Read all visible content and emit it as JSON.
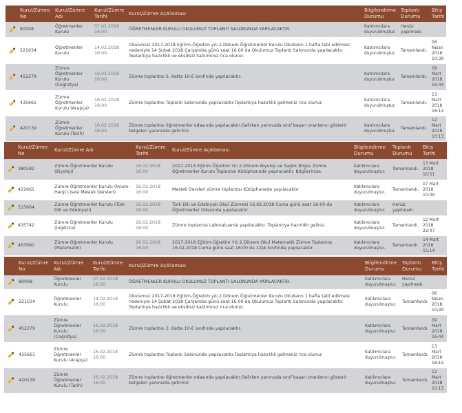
{
  "tables": [
    {
      "headers": [
        "",
        "Kurul/Zümre No",
        "Kurul/Zümre Adı",
        "Kurul/Zümre Tarihi",
        "Kurul/Zümre Açıklaması",
        "Bilgilendirme Durumu",
        "Toplantı Durumu",
        "Bitiş Tarihi"
      ],
      "rows": [
        {
          "icon": "pencil-edit-icon",
          "no": "80008",
          "name": "Öğretmenler Kurulu",
          "date": "07.02.2018 16:00",
          "desc": "ÖĞRETMENLER KURULU OKULUMUZ TOPLANTI SALONUNDA YAPILACAKTIR.",
          "info": "Katılımcılara duyurulmuştur.",
          "status": "Henüz yapılmadı.",
          "end": ""
        },
        {
          "icon": "pencil-edit-icon",
          "no": "221034",
          "name": "Öğretmenler Kurulu",
          "date": "14.02.2018 16:00",
          "desc": "Okulumuz 2017-2018 Eğitim-Öğretim yılı 2.Dönem Öğretmenler Kurulu Okulların 1 hafta tatil edilmesi nedeniyle 14 Şubat 2018 Çarşamba günü saat 16.00 da Okulumuz Toplantı Salonunda yapılacaktır. Toplantıya hazırlıklı ve eksiksiz katılımınız rica olunur.",
          "info": "Katılımcılara duyurulmuştur.",
          "status": "Tamamlandı.",
          "end": "06 Nisan 2018 10:39"
        },
        {
          "icon": "pencil-edit-icon",
          "no": "452279",
          "name": "Zümre Öğretmenler Kurulu (Coğrafya)",
          "date": "16.02.2018 16:00",
          "desc": "Zümre toplantısı 2. Katta 10-E sınıfında yapılacaktır.",
          "info": "Katılımcılara duyurulmuştur.",
          "status": "Tamamlandı.",
          "end": "09 Mart 2018 16:44"
        },
        {
          "icon": "pencil-edit-icon",
          "no": "435661",
          "name": "Zümre Öğretmenler Kurulu (Arapça)",
          "date": "16.02.2018 16:00",
          "desc": "Zümre toplantısı Toplantı Salonunda yapılacaktır.Toplantıya hazırlıklı gelmeniz rica olunur.",
          "info": "Katılımcılara duyurulmuştur.",
          "status": "Tamamlandı.",
          "end": "13 Mart 2018 16:14"
        },
        {
          "icon": "pencil-edit-icon",
          "no": "420139",
          "name": "Zümre Öğretmenler Kurulu (Tarih)",
          "date": "16.02.2018 16:00",
          "desc": "Zümre toplantısı öğretmenler odasında yapılacaktır.Gelirken yanınızda sınıf başarı oranlarını gösterir belgeleri yanınızda getiriniz",
          "info": "Katılımcılara duyurulmuştur.",
          "status": "Tamamlandı.",
          "end": "12 Mart 2018 10:13"
        }
      ]
    },
    {
      "headers": [
        "",
        "Kurul/Zümre No",
        "Kurul/Zümre Adı",
        "Kurul/Zümre Tarihi",
        "Kurul/Zümre Açıklaması",
        "Bilgilendirme Durumu",
        "Toplantı Durumu",
        "Bitiş Tarihi"
      ],
      "rows": [
        {
          "icon": "pencil-edit-icon",
          "no": "380582",
          "name": "Zümre Öğretmenler Kurulu (Biyoloji)",
          "date": "16.02.2018 16:00",
          "desc": "2017-2018 Eğitim Öğretim Yılı 2.Dönem Biyoloji ve Sağlık Bilgisi Zümre Öğretmenler Kurulu Toplantısı Kütüphanede yapılacaktır. Bilgilerinize.",
          "info": "Katılımcılara duyurulmuştur.",
          "status": "Tamamlandı.",
          "end": "13 Mart 2018 10:51"
        },
        {
          "icon": "pencil-edit-icon",
          "no": "422661",
          "name": "Zümre Öğretmenler Kurulu (İmam-Hatip Lisesi Meslek Dersleri)",
          "date": "16.02.2018 16:00",
          "desc": "Meslek Dersleri zümre toplantısı Kütüphanede yapılacaktır.",
          "info": "Katılımcılara duyurulmuştur.",
          "status": "Tamamlandı.",
          "end": "07 Mart 2018 10:39"
        },
        {
          "icon": "pencil-edit-icon",
          "no": "515664",
          "name": "Zümre Öğretmenler Kurulu (Türk Dili ve Edebiyatı)",
          "date": "16.02.2018 16:00",
          "desc": "Türk Dili ve Edebiyatı Okul Zümresi 16.02.2018 Cuma günü saat 16:00 da Öğretmenler Odasında yapılacaktır.",
          "info": "Katılımcılara duyurulmuştur.",
          "status": "Henüz yapılmadı.",
          "end": ""
        },
        {
          "icon": "pencil-edit-icon",
          "no": "435742",
          "name": "Zümre Öğretmenler Kurulu (İngilizce)",
          "date": "16.02.2018 16:00",
          "desc": "Zümre toplantısı Laboratuarda yapılacaktır. Toplantıya hazırlıklı geliniz.",
          "info": "Katılımcılara duyurulmuştur.",
          "status": "Tamamlandı.",
          "end": "12 Mart 2018 22:47"
        },
        {
          "icon": "pencil-edit-icon",
          "no": "463990",
          "name": "Zümre Öğretmenler Kurulu (Matematik)",
          "date": "16.02.2018 16:00",
          "desc": "2017-2018 Eğitim-Öğretim Yılı 2.Dönem Okul Matematik Zümre Toplantısı 16.02.2018 Cuma günü saat 16:00 da 12/A Sınıfında yapılacaktır.",
          "info": "Katılımcılara duyurulmuştur.",
          "status": "Tamamlandı.",
          "end": "14 Mart 2018 15:14"
        }
      ]
    },
    {
      "headers": [
        "",
        "Kurul/Zümre No",
        "Kurul/Zümre Adı",
        "Kurul/Zümre Tarihi",
        "Kurul/Zümre Açıklaması",
        "Bilgilendirme Durumu",
        "Toplantı Durumu",
        "Bitiş Tarihi"
      ],
      "rows": [
        {
          "icon": "pencil-edit-icon",
          "no": "80008",
          "name": "Öğretmenler Kurulu",
          "date": "07.02.2018 16:00",
          "desc": "ÖĞRETMENLER KURULU OKULUMUZ TOPLANTI SALONUNDA YAPILACAKTIR.",
          "info": "Katılımcılara duyurulmuştur.",
          "status": "Henüz yapılmadı.",
          "end": ""
        },
        {
          "icon": "pencil-edit-icon",
          "no": "221034",
          "name": "Öğretmenler Kurulu",
          "date": "14.02.2018 16:00",
          "desc": "Okulumuz 2017-2018 Eğitim-Öğretim yılı 2.Dönem Öğretmenler Kurulu Okulların 1 hafta tatil edilmesi nedeniyle 14 Şubat 2018 Çarşamba günü saat 16.00 da Okulumuz Toplantı Salonunda yapılacaktır. Toplantıya hazırlıklı ve eksiksiz katılımınız rica olunur.",
          "info": "Katılımcılara duyurulmuştur.",
          "status": "Tamamlandı.",
          "end": "06 Nisan 2018 10:39"
        },
        {
          "icon": "pencil-edit-icon",
          "no": "452279",
          "name": "Zümre Öğretmenler Kurulu (Coğrafya)",
          "date": "16.02.2018 16:00",
          "desc": "Zümre toplantısı 2. Katta 10-E sınıfında yapılacaktır.",
          "info": "Katılımcılara duyurulmuştur.",
          "status": "Tamamlandı.",
          "end": "09 Mart 2018 16:44"
        },
        {
          "icon": "pencil-edit-icon",
          "no": "435661",
          "name": "Zümre Öğretmenler Kurulu (Arapça)",
          "date": "16.02.2018 16:00",
          "desc": "Zümre toplantısı Toplantı Salonunda yapılacaktır.Toplantıya hazırlıklı gelmeniz rica olunur.",
          "info": "Katılımcılara duyurulmuştur.",
          "status": "Tamamlandı.",
          "end": "13 Mart 2018 16:14"
        },
        {
          "icon": "pencil-edit-icon",
          "no": "420139",
          "name": "Zümre Öğretmenler Kurulu (Tarih)",
          "date": "16.02.2018 16:00",
          "desc": "Zümre toplantısı öğretmenler odasında yapılacaktır.Gelirken yanınızda sınıf başarı oranlarını gösterir belgeleri yanınızda getiriniz",
          "info": "Katılımcılara duyurulmuştur.",
          "status": "Tamamlandı.",
          "end": "12 Mart 2018 10:13"
        }
      ]
    }
  ],
  "colors": {
    "header": "#8b4a2f",
    "row_alt": "#d3d4d8"
  }
}
